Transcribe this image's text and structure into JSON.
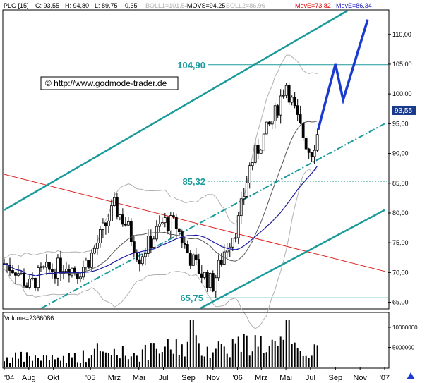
{
  "header": {
    "symbol": "PLG [15]",
    "close": "C: 93,55",
    "high": "H: 94,80",
    "low": "L: 89,75",
    "change": "-0,35",
    "boll1": "BOLL1=101,54",
    "movs": "MOVS=94,25",
    "boll2": "BOLL2=86,96",
    "move1": "MovE=73,82",
    "move2": "MovE=86,34"
  },
  "watermark": "© http://www.godmode-trader.de",
  "price_tag": "93,55",
  "volume_header": "Volume=2366086",
  "levels": {
    "high": "104,90",
    "mid": "85,32",
    "low": "65,75"
  },
  "colors": {
    "background": "#ffffff",
    "channel": "#1a9a9a",
    "level_text": "#1a9a9a",
    "red_line": "#dd2222",
    "projection": "#1a3ad0",
    "ma_fast": "#555555",
    "ma_slow": "#1a1aa0",
    "bands": "#b0b0b0",
    "price_tag_bg": "#1a3a8a",
    "move1": "#e00000",
    "move2": "#1a1ac0",
    "boll": "#b0b0b0"
  },
  "icons": {
    "watermark": "copyright-icon",
    "nav": "arrow-icon"
  },
  "chart_data": {
    "type": "candlestick",
    "x_tick_labels": [
      "'04",
      "Aug",
      "Okt",
      "'05",
      "Mrz",
      "Mai",
      "Jul",
      "Sep",
      "Nov",
      "'06",
      "Mrz",
      "Mai",
      "Jul",
      "Sep",
      "Nov",
      "'07"
    ],
    "x_ticks": [
      "2004-06",
      "2004-08",
      "2004-10",
      "2005-01",
      "2005-03",
      "2005-05",
      "2005-07",
      "2005-09",
      "2005-11",
      "2006-01",
      "2006-03",
      "2006-05",
      "2006-07",
      "2006-09",
      "2006-11",
      "2007-01"
    ],
    "y_tick_labels": [
      "65,00",
      "70,00",
      "75,00",
      "80,00",
      "85,00",
      "90,00",
      "95,00",
      "100,00",
      "105,00",
      "110,00"
    ],
    "ylim": [
      64,
      114
    ],
    "volume_tick_labels": [
      "5000000",
      "10000000"
    ],
    "volume_ylim": [
      0,
      13500000
    ],
    "horizontal_levels": [
      104.9,
      85.32,
      65.75
    ],
    "close_path": [
      [
        "2004-06",
        71.5
      ],
      [
        "2004-07",
        70.5
      ],
      [
        "2004-08",
        67.5
      ],
      [
        "2004-09",
        70
      ],
      [
        "2004-10",
        70.5
      ],
      [
        "2004-11",
        71.5
      ],
      [
        "2004-12",
        70
      ],
      [
        "2005-01",
        72.5
      ],
      [
        "2005-02",
        77
      ],
      [
        "2005-03",
        81
      ],
      [
        "2005-04",
        78
      ],
      [
        "2005-05",
        72.5
      ],
      [
        "2005-06",
        75.5
      ],
      [
        "2005-07",
        78.5
      ],
      [
        "2005-08",
        78
      ],
      [
        "2005-09",
        73
      ],
      [
        "2005-10",
        70
      ],
      [
        "2005-11",
        68
      ],
      [
        "2005-12",
        74
      ],
      [
        "2006-01",
        78
      ],
      [
        "2006-02",
        88
      ],
      [
        "2006-03",
        92
      ],
      [
        "2006-04",
        96
      ],
      [
        "2006-05",
        102
      ],
      [
        "2006-06",
        95
      ],
      [
        "2006-07",
        90
      ],
      [
        "2006-07-20",
        93.55
      ]
    ],
    "volume_path": [
      [
        "2004-06",
        2500000
      ],
      [
        "2004-08",
        2800000
      ],
      [
        "2004-10",
        2400000
      ],
      [
        "2005-01",
        3300000
      ],
      [
        "2005-03",
        4200000
      ],
      [
        "2005-05",
        3700000
      ],
      [
        "2005-07",
        5000000
      ],
      [
        "2005-09",
        6200000
      ],
      [
        "2005-11",
        5300000
      ],
      [
        "2006-01",
        6400000
      ],
      [
        "2006-03",
        6600000
      ],
      [
        "2006-05",
        5500000
      ],
      [
        "2006-07",
        4100000
      ]
    ],
    "channel_upper": [
      [
        "2004-06",
        80.5
      ],
      [
        "2006-10",
        114
      ]
    ],
    "channel_lower": [
      [
        "2005-10",
        64
      ],
      [
        "2007-01",
        80.5
      ]
    ],
    "channel_middle": [
      [
        "2004-09",
        64
      ],
      [
        "2007-01",
        95
      ]
    ],
    "red_trendline": [
      [
        "2004-06",
        86.5
      ],
      [
        "2007-01",
        70.2
      ]
    ],
    "projection": [
      [
        "2006-07-20",
        94
      ],
      [
        "2006-09",
        105
      ],
      [
        "2006-09-20",
        99
      ],
      [
        "2006-11-20",
        112.5
      ]
    ]
  }
}
